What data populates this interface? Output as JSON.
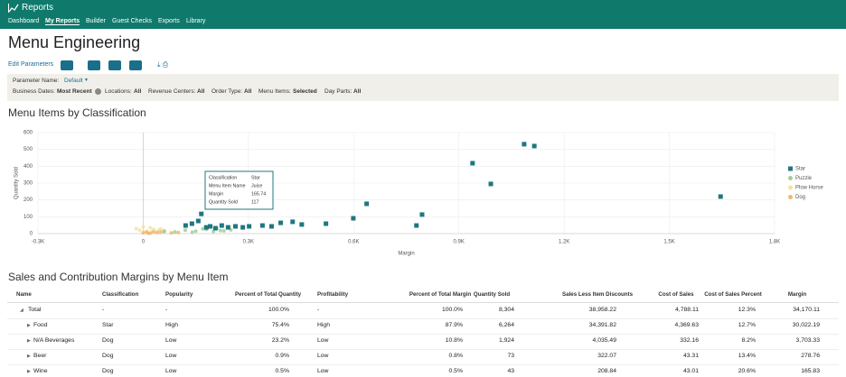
{
  "header": {
    "title": "Reports",
    "nav": [
      "Dashboard",
      "My Reports",
      "Builder",
      "Guest Checks",
      "Exports",
      "Library"
    ]
  },
  "page_title": "Menu Engineering",
  "toolbar": {
    "edit": "Edit Parameters"
  },
  "parameters": {
    "name_label": "Parameter Name:",
    "name_value": "Default",
    "filters": [
      {
        "label": "Business Dates:",
        "value": "Most Recent"
      },
      {
        "label": "Locations:",
        "value": "All"
      },
      {
        "label": "Revenue Centers:",
        "value": "All"
      },
      {
        "label": "Order Type:",
        "value": "All"
      },
      {
        "label": "Menu Items:",
        "value": "Selected"
      },
      {
        "label": "Day Parts:",
        "value": "All"
      }
    ]
  },
  "chart_section_title": "Menu Items by Classification",
  "chart_data": {
    "type": "scatter",
    "xlabel": "Margin",
    "ylabel": "Quantity Sold",
    "xlim": [
      -300,
      1800
    ],
    "ylim": [
      0,
      600
    ],
    "xticks": [
      {
        "value": -300,
        "label": "-0.3K"
      },
      0,
      {
        "value": 300,
        "label": "0.3K"
      },
      {
        "value": 600,
        "label": "0.6K"
      },
      {
        "value": 900,
        "label": "0.9K"
      },
      {
        "value": 1200,
        "label": "1.2K"
      },
      {
        "value": 1500,
        "label": "1.5K"
      },
      {
        "value": 1800,
        "label": "1.8K"
      }
    ],
    "yticks": [
      0,
      100,
      200,
      300,
      400,
      500,
      600
    ],
    "grid": true,
    "legend": "right",
    "series": [
      {
        "name": "Plow Horse",
        "color": "#f3e3a0",
        "marker": "circle",
        "x": [
          -20,
          -10,
          0,
          10,
          20,
          30,
          40,
          50,
          60,
          5,
          25,
          45
        ],
        "values": [
          30,
          20,
          40,
          15,
          35,
          25,
          10,
          28,
          18,
          8,
          12,
          22
        ]
      },
      {
        "name": "Dog",
        "color": "#f4b670",
        "marker": "circle",
        "x": [
          0,
          10,
          20,
          30,
          40,
          60,
          80,
          100,
          15,
          50
        ],
        "values": [
          5,
          8,
          3,
          10,
          6,
          12,
          4,
          7,
          2,
          9
        ]
      },
      {
        "name": "Puzzle",
        "color": "#9fd09c",
        "marker": "circle",
        "x": [
          120,
          150,
          180,
          200,
          220,
          250,
          90,
          60,
          140,
          170,
          210,
          230
        ],
        "values": [
          20,
          15,
          25,
          12,
          18,
          22,
          10,
          14,
          8,
          28,
          30,
          16
        ]
      },
      {
        "name": "Star",
        "color": "#1f7780",
        "marker": "square",
        "x": [
          1086,
          1115,
          939,
          991,
          1646,
          795,
          779,
          637,
          599,
          521,
          165.74,
          157,
          139,
          121,
          191,
          224,
          263,
          302,
          340,
          392,
          426,
          452,
          366,
          284,
          242,
          206,
          180
        ],
        "values": [
          531,
          520,
          418,
          295,
          220,
          113,
          48,
          177,
          91,
          59,
          117,
          75,
          59,
          48,
          43,
          48,
          43,
          43,
          48,
          64,
          70,
          54,
          43,
          37,
          37,
          32,
          37
        ]
      }
    ],
    "legend_order": [
      "Star",
      "Puzzle",
      "Plow Horse",
      "Dog"
    ],
    "tooltip": [
      [
        "Classification",
        "Star"
      ],
      [
        "Menu Item Name",
        "Juice"
      ],
      [
        "Margin",
        "165.74"
      ],
      [
        "Quantity Sold",
        "117"
      ]
    ]
  },
  "table": {
    "title": "Sales and Contribution Margins by Menu Item",
    "columns": [
      "Name",
      "Classification",
      "Popularity",
      "Percent of Total Quantity",
      "Profitability",
      "Percent of Total Margin",
      "Quantity Sold",
      "Sales Less Item Discounts",
      "Cost of Sales",
      "Cost of Sales Percent",
      "Margin"
    ],
    "rows": [
      [
        "Total",
        "-",
        "-",
        "100.0%",
        "-",
        "100.0%",
        "8,304",
        "38,958.22",
        "4,788.11",
        "12.3%",
        "34,170.11"
      ],
      [
        "Food",
        "Star",
        "High",
        "75.4%",
        "High",
        "87.9%",
        "6,264",
        "34,391.82",
        "4,369.63",
        "12.7%",
        "30,022.19"
      ],
      [
        "N/A Beverages",
        "Dog",
        "Low",
        "23.2%",
        "Low",
        "10.8%",
        "1,924",
        "4,035.49",
        "332.16",
        "8.2%",
        "3,703.33"
      ],
      [
        "Beer",
        "Dog",
        "Low",
        "0.9%",
        "Low",
        "0.8%",
        "73",
        "322.07",
        "43.31",
        "13.4%",
        "278.76"
      ],
      [
        "Wine",
        "Dog",
        "Low",
        "0.5%",
        "Low",
        "0.5%",
        "43",
        "208.84",
        "43.01",
        "20.6%",
        "165.83"
      ]
    ]
  }
}
